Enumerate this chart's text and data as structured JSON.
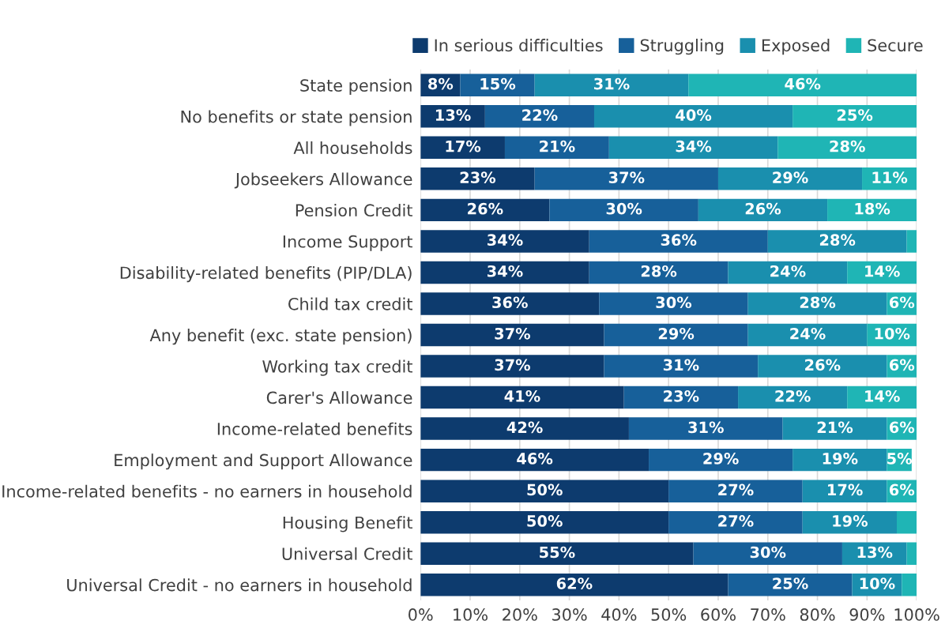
{
  "chart_data": {
    "type": "bar",
    "orientation": "horizontal",
    "stacked": true,
    "legend": "top",
    "grid": "x",
    "categories": [
      "State pension",
      "No benefits or state pension",
      "All households",
      "Jobseekers Allowance",
      "Pension Credit",
      "Income Support",
      "Disability-related benefits (PIP/DLA)",
      "Child tax credit",
      "Any benefit (exc. state pension)",
      "Working tax credit",
      "Carer's Allowance",
      "Income-related benefits",
      "Employment and Support Allowance",
      "Income-related benefits - no earners in household",
      "Housing Benefit",
      "Universal Credit",
      "Universal Credit - no earners in household"
    ],
    "series": [
      {
        "name": "In serious difficulties",
        "color": "#0d3b6e",
        "values": [
          8,
          13,
          17,
          23,
          26,
          34,
          34,
          36,
          37,
          37,
          41,
          42,
          46,
          50,
          50,
          55,
          62
        ],
        "value_labels": [
          "8%",
          "13%",
          "17%",
          "23%",
          "26%",
          "34%",
          "34%",
          "36%",
          "37%",
          "37%",
          "41%",
          "42%",
          "46%",
          "50%",
          "50%",
          "55%",
          "62%"
        ]
      },
      {
        "name": "Struggling",
        "color": "#17609a",
        "values": [
          15,
          22,
          21,
          37,
          30,
          36,
          28,
          30,
          29,
          31,
          23,
          31,
          29,
          27,
          27,
          30,
          25
        ],
        "value_labels": [
          "15%",
          "22%",
          "21%",
          "37%",
          "30%",
          "36%",
          "28%",
          "30%",
          "29%",
          "31%",
          "23%",
          "31%",
          "29%",
          "27%",
          "27%",
          "30%",
          "25%"
        ]
      },
      {
        "name": "Exposed",
        "color": "#1a8fae",
        "values": [
          31,
          40,
          34,
          29,
          26,
          28,
          24,
          28,
          24,
          26,
          22,
          21,
          19,
          17,
          19,
          13,
          10
        ],
        "value_labels": [
          "31%",
          "40%",
          "34%",
          "29%",
          "26%",
          "28%",
          "24%",
          "28%",
          "24%",
          "26%",
          "22%",
          "21%",
          "19%",
          "17%",
          "19%",
          "13%",
          "10%"
        ]
      },
      {
        "name": "Secure",
        "color": "#1fb5b5",
        "values": [
          46,
          25,
          28,
          11,
          18,
          2,
          14,
          6,
          10,
          6,
          14,
          6,
          5,
          6,
          4,
          2,
          3
        ],
        "value_labels": [
          "46%",
          "25%",
          "28%",
          "11%",
          "18%",
          null,
          "14%",
          "6%",
          "10%",
          "6%",
          "14%",
          "6%",
          "5%",
          "6%",
          null,
          null,
          null
        ]
      }
    ],
    "xlim": [
      0,
      100
    ],
    "xticks": [
      {
        "value": 0,
        "label": "0%"
      },
      {
        "value": 10,
        "label": "10%"
      },
      {
        "value": 20,
        "label": "20%"
      },
      {
        "value": 30,
        "label": "30%"
      },
      {
        "value": 40,
        "label": "40%"
      },
      {
        "value": 50,
        "label": "50%"
      },
      {
        "value": 60,
        "label": "60%"
      },
      {
        "value": 70,
        "label": "70%"
      },
      {
        "value": 80,
        "label": "80%"
      },
      {
        "value": 90,
        "label": "90%"
      },
      {
        "value": 100,
        "label": "100%"
      }
    ]
  }
}
